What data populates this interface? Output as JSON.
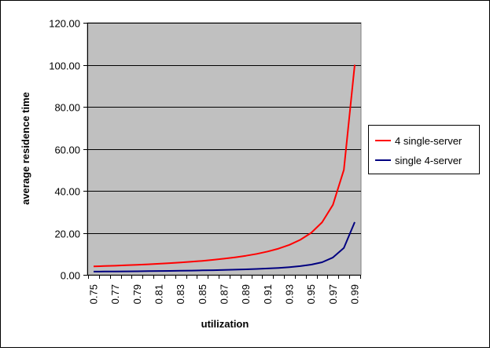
{
  "chart_data": {
    "type": "line",
    "xlabel": "utilization",
    "ylabel": "average residence time",
    "ylim": [
      0,
      120
    ],
    "y_ticks": [
      "0.00",
      "20.00",
      "40.00",
      "60.00",
      "80.00",
      "100.00",
      "120.00"
    ],
    "grid": "horizontal major gridlines",
    "legend_position": "right",
    "x_tick_labels": [
      "0.75",
      "0.77",
      "0.79",
      "0.81",
      "0.83",
      "0.85",
      "0.87",
      "0.89",
      "0.91",
      "0.93",
      "0.95",
      "0.97",
      "0.99"
    ],
    "x": [
      0.75,
      0.76,
      0.77,
      0.78,
      0.79,
      0.8,
      0.81,
      0.82,
      0.83,
      0.84,
      0.85,
      0.86,
      0.87,
      0.88,
      0.89,
      0.9,
      0.91,
      0.92,
      0.93,
      0.94,
      0.95,
      0.96,
      0.97,
      0.98,
      0.99
    ],
    "series": [
      {
        "name": "4 single-server",
        "color": "#ff0000",
        "values": [
          4.0,
          4.17,
          4.35,
          4.55,
          4.76,
          5.0,
          5.26,
          5.56,
          5.88,
          6.25,
          6.67,
          7.14,
          7.69,
          8.33,
          9.09,
          10.0,
          11.11,
          12.5,
          14.29,
          16.67,
          20.0,
          25.0,
          33.33,
          50.0,
          100.0
        ]
      },
      {
        "name": "single 4-server",
        "color": "#000080",
        "values": [
          1.52,
          1.56,
          1.6,
          1.65,
          1.7,
          1.76,
          1.82,
          1.88,
          1.95,
          2.03,
          2.12,
          2.22,
          2.33,
          2.46,
          2.61,
          2.8,
          3.02,
          3.29,
          3.65,
          4.15,
          4.87,
          5.99,
          8.28,
          12.8,
          25.1
        ]
      }
    ]
  },
  "style": {
    "plot_background": "#c0c0c0",
    "gridline_color": "#000000"
  }
}
